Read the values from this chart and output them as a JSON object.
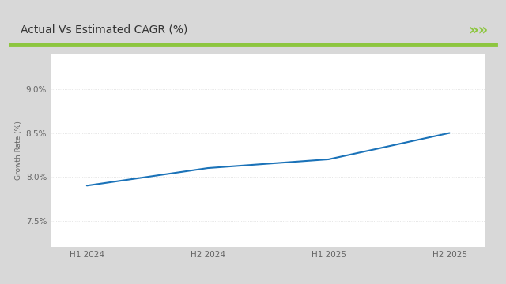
{
  "title": "Actual Vs Estimated CAGR (%)",
  "x_labels": [
    "H1 2024",
    "H2 2024",
    "H1 2025",
    "H2 2025"
  ],
  "x_values": [
    0,
    1,
    2,
    3
  ],
  "y_values": [
    7.9,
    8.1,
    8.2,
    8.5
  ],
  "ylabel": "Growth Rate (%)",
  "yticks": [
    7.5,
    8.0,
    8.5,
    9.0
  ],
  "ytick_labels": [
    "7.5%",
    "8.0%",
    "8.5%",
    "9.0%"
  ],
  "ylim": [
    7.2,
    9.4
  ],
  "line_color": "#1a72b8",
  "line_width": 1.5,
  "outer_bg_color": "#d8d8d8",
  "card_bg_color": "#ffffff",
  "plot_bg_color": "#ffffff",
  "title_fontsize": 10,
  "axis_fontsize": 7.5,
  "ylabel_fontsize": 6.5,
  "green_line_color": "#8dc63f",
  "arrow_color": "#8dc63f",
  "title_color": "#333333",
  "grid_color": "#dddddd",
  "tick_color": "#666666"
}
